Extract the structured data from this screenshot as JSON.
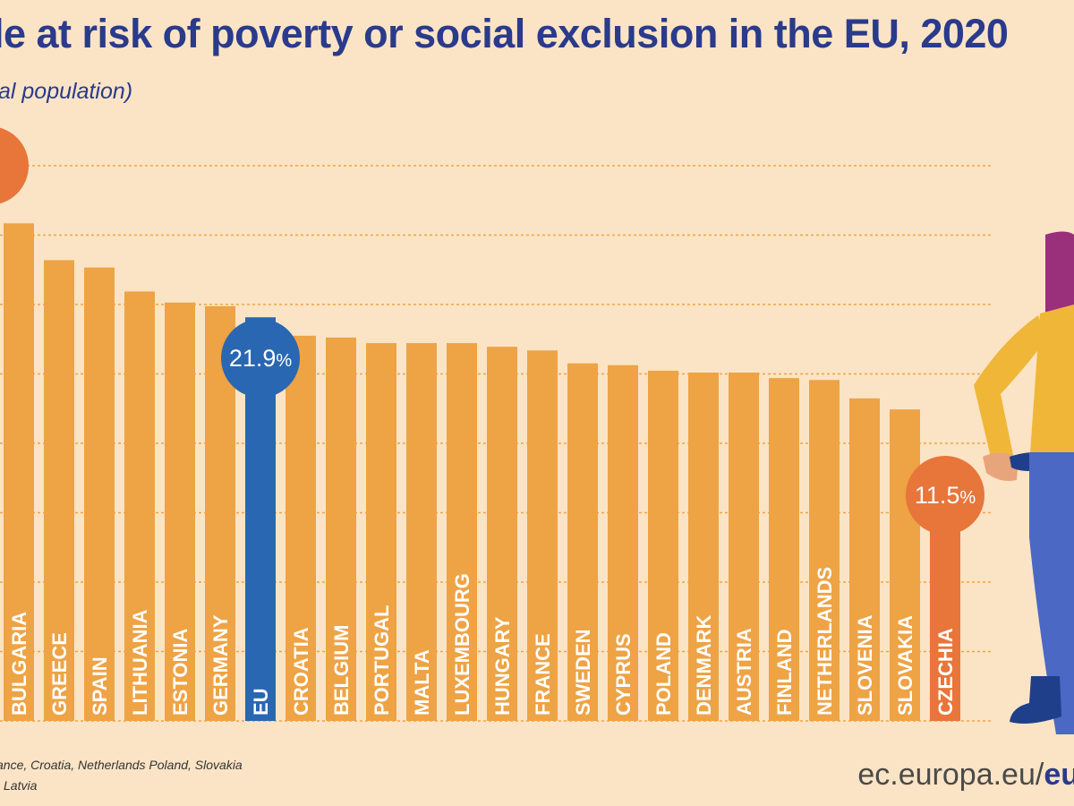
{
  "title": "le at risk of poverty or social exclusion in the EU, 2020",
  "subtitle": "al population)",
  "footnote": {
    "line1": "ance, Croatia, Netherlands Poland,  Slovakia",
    "line2": "Latvia"
  },
  "site": {
    "prefix": "ec.europa.eu/",
    "suffix": "eu"
  },
  "colors": {
    "bar": "#eea345",
    "eu": "#2a67b2",
    "lowest": "#e8753a",
    "highest": "#e8753a",
    "grid": "#eea345",
    "background": "#fbe4c5"
  },
  "chart_data": {
    "type": "bar",
    "categories": [
      "BULGARIA",
      "GREECE",
      "SPAIN",
      "LITHUANIA",
      "ESTONIA",
      "GERMANY",
      "EU",
      "CROATIA",
      "BELGIUM",
      "PORTUGAL",
      "MALTA",
      "LUXEMBOURG",
      "HUNGARY",
      "FRANCE",
      "SWEDEN",
      "CYPRUS",
      "POLAND",
      "DENMARK",
      "AUSTRIA",
      "FINLAND",
      "NETHERLANDS",
      "SLOVENIA",
      "SLOVAKIA",
      "CZECHIA"
    ],
    "values": [
      27.0,
      25.0,
      24.6,
      23.3,
      22.7,
      22.5,
      21.9,
      20.9,
      20.8,
      20.5,
      20.5,
      20.5,
      20.3,
      20.1,
      19.4,
      19.3,
      19.0,
      18.9,
      18.9,
      18.6,
      18.5,
      17.5,
      16.9,
      11.5
    ],
    "ylim": [
      0,
      31
    ],
    "grid": true,
    "callouts": [
      {
        "category": "EU",
        "value": "21.9",
        "unit": "%"
      },
      {
        "category": "CZECHIA",
        "value": "11.5",
        "unit": "%"
      },
      {
        "category": "",
        "value": "",
        "unit": "%"
      }
    ],
    "xlabel": "",
    "ylabel": ""
  }
}
